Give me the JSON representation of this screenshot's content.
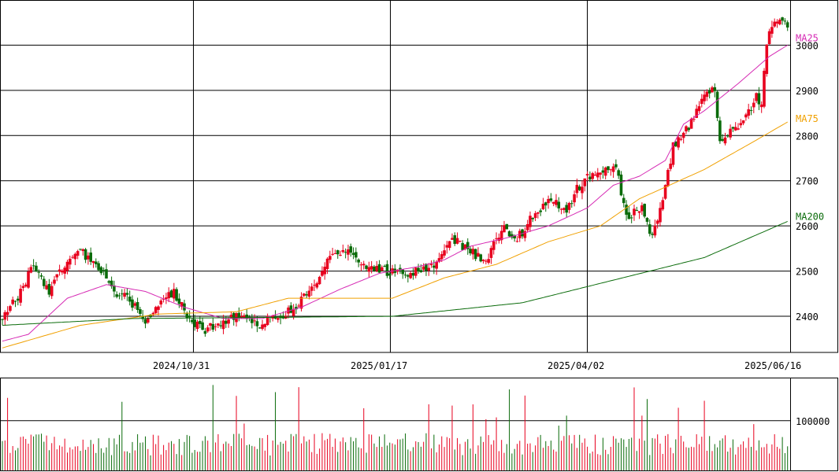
{
  "chart_data": [
    {
      "type": "candlestick",
      "title": "",
      "ylim": [
        2320,
        3100
      ],
      "y_ticks": [
        2400,
        2500,
        2600,
        2700,
        2800,
        2900,
        3000
      ],
      "y_tick_labels": [
        "2400",
        "2500",
        "2600",
        "2700",
        "2800",
        "2900",
        "3000"
      ],
      "x_tick_labels": [
        "2024/10/31",
        "2025/01/17",
        "2025/04/02",
        "2025/06/16"
      ],
      "up_color": "#e8001e",
      "down_color": "#0a6b0a",
      "series": [
        {
          "name": "MA25",
          "color": "#d62ab4",
          "anchors": [
            [
              0,
              2345
            ],
            [
              10,
              2360
            ],
            [
              25,
              2440
            ],
            [
              40,
              2470
            ],
            [
              55,
              2455
            ],
            [
              70,
              2420
            ],
            [
              85,
              2395
            ],
            [
              100,
              2395
            ],
            [
              115,
              2420
            ],
            [
              130,
              2460
            ],
            [
              145,
              2495
            ],
            [
              160,
              2510
            ],
            [
              170,
              2525
            ],
            [
              180,
              2555
            ],
            [
              195,
              2575
            ],
            [
              210,
              2600
            ],
            [
              225,
              2640
            ],
            [
              235,
              2690
            ],
            [
              245,
              2710
            ],
            [
              255,
              2745
            ],
            [
              262,
              2825
            ],
            [
              270,
              2855
            ],
            [
              283,
              2915
            ],
            [
              295,
              2975
            ],
            [
              302,
              3000
            ]
          ]
        },
        {
          "name": "MA75",
          "color": "#f0a000",
          "anchors": [
            [
              0,
              2330
            ],
            [
              30,
              2380
            ],
            [
              60,
              2405
            ],
            [
              90,
              2410
            ],
            [
              110,
              2440
            ],
            [
              150,
              2440
            ],
            [
              170,
              2485
            ],
            [
              190,
              2515
            ],
            [
              210,
              2565
            ],
            [
              230,
              2600
            ],
            [
              245,
              2660
            ],
            [
              270,
              2725
            ],
            [
              290,
              2790
            ],
            [
              302,
              2830
            ]
          ]
        },
        {
          "name": "MA200",
          "color": "#0a6b0a",
          "anchors": [
            [
              0,
              2380
            ],
            [
              50,
              2395
            ],
            [
              150,
              2400
            ],
            [
              200,
              2430
            ],
            [
              235,
              2480
            ],
            [
              270,
              2530
            ],
            [
              290,
              2580
            ],
            [
              302,
              2610
            ]
          ]
        }
      ],
      "volume": {
        "ylim": [
          0,
          185000
        ],
        "y_ticks": [
          100000
        ],
        "y_tick_labels": [
          "100000"
        ]
      }
    }
  ]
}
